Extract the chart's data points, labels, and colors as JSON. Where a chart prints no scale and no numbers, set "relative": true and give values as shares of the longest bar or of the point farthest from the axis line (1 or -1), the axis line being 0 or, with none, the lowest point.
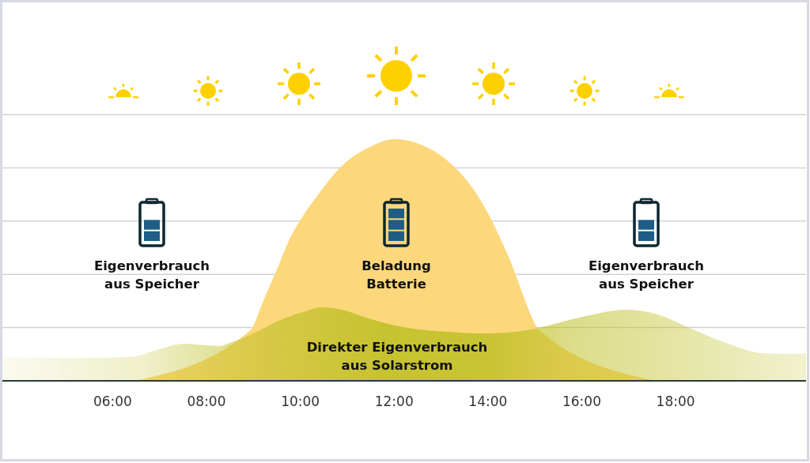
{
  "chart_data": {
    "type": "area",
    "relative": true,
    "grid": "y",
    "xlim": [
      3.65,
      20.78
    ],
    "xticks": [
      {
        "value": 6,
        "label": "06:00"
      },
      {
        "value": 8,
        "label": "08:00"
      },
      {
        "value": 10,
        "label": "10:00"
      },
      {
        "value": 12,
        "label": "12:00"
      },
      {
        "value": 14,
        "label": "14:00"
      },
      {
        "value": 16,
        "label": "16:00"
      },
      {
        "value": 18,
        "label": "18:00"
      }
    ],
    "series": [
      {
        "color": "#fdd77b",
        "x": [
          6.47,
          7.31,
          7.98,
          8.49,
          8.94,
          9.21,
          9.5,
          9.78,
          10.05,
          10.34,
          10.89,
          11.51,
          12.0,
          12.57,
          13.14,
          13.7,
          13.98,
          14.25,
          14.49,
          14.71,
          14.92,
          15.09,
          15.55,
          16.05,
          16.72,
          17.56
        ],
        "values": [
          0,
          null,
          null,
          null,
          0.21,
          0.33,
          0.46,
          0.59,
          0.68,
          0.76,
          0.89,
          0.97,
          1,
          0.977,
          0.91,
          0.79,
          0.7,
          0.595,
          0.49,
          0.376,
          0.27,
          0.21,
          null,
          null,
          null,
          0
        ]
      },
      {
        "color": "#bfc026",
        "x": [
          3.65,
          5.29,
          6.42,
          6.97,
          7.53,
          7.98,
          8.27,
          8.54,
          8.94,
          9.5,
          10.05,
          10.45,
          10.89,
          11.46,
          12.02,
          13.14,
          13.98,
          14.82,
          15.93,
          16.94,
          17.61,
          18.18,
          19.03,
          19.87,
          20.42,
          20.78
        ],
        "values": [
          0.098,
          0.095,
          0.1,
          0.13,
          0.154,
          0.147,
          0.144,
          0.16,
          0.19,
          0.245,
          0.284,
          0.304,
          0.294,
          0.258,
          0.229,
          0.203,
          0.196,
          0.209,
          0.261,
          0.294,
          0.275,
          0.229,
          0.16,
          0.114,
          0.111,
          0.114
        ]
      }
    ],
    "annotations": [
      "Eigenverbrauch\naus Speicher",
      "Beladung\nBatterie",
      "Eigenverbrauch\naus Speicher",
      "Direkter Eigenverbrauch\naus Solarstrom"
    ]
  }
}
